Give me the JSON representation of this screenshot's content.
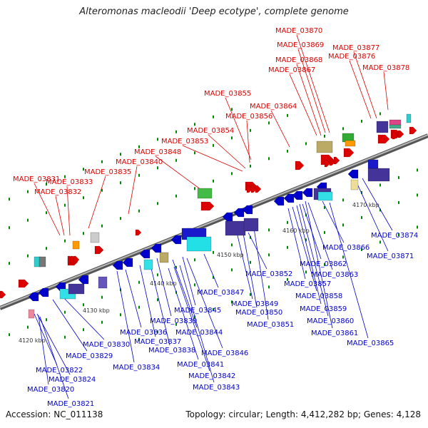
{
  "title": "Alteromonas macleodii 'Deep ecotype', complete genome",
  "footer": {
    "accession": "Accession: NC_011138",
    "summary": "Topology: circular; Length: 4,412,282 bp; Genes: 4,128"
  },
  "scale_labels": [
    "4120 kbp",
    "4130 kbp",
    "4140 kbp",
    "4150 kbp",
    "4160 kbp",
    "4170 kbp"
  ],
  "forward_labels": [
    "MADE_03831",
    "MADE_03832",
    "MADE_03833",
    "MADE_03835",
    "MADE_03840",
    "MADE_03848",
    "MADE_03853",
    "MADE_03854",
    "MADE_03855",
    "MADE_03856",
    "MADE_03864",
    "MADE_03867",
    "MADE_03868",
    "MADE_03869",
    "MADE_03870",
    "MADE_03876",
    "MADE_03877",
    "MADE_03878"
  ],
  "reverse_labels": [
    "MADE_03820",
    "MADE_03821",
    "MADE_03822",
    "MADE_03824",
    "MADE_03829",
    "MADE_03830",
    "MADE_03834",
    "MADE_03836",
    "MADE_03837",
    "MADE_03838",
    "MADE_03839",
    "MADE_03841",
    "MADE_03842",
    "MADE_03843",
    "MADE_03844",
    "MADE_03845",
    "MADE_03846",
    "MADE_03847",
    "MADE_03849",
    "MADE_03850",
    "MADE_03851",
    "MADE_03852",
    "MADE_03857",
    "MADE_03858",
    "MADE_03859",
    "MADE_03860",
    "MADE_03861",
    "MADE_03862",
    "MADE_03863",
    "MADE_03865",
    "MADE_03866",
    "MADE_03871",
    "MADE_03874"
  ],
  "colors": {
    "forward": "#dd0000",
    "reverse": "#0000cc",
    "backbone": "#888888",
    "tick": "#008800"
  }
}
